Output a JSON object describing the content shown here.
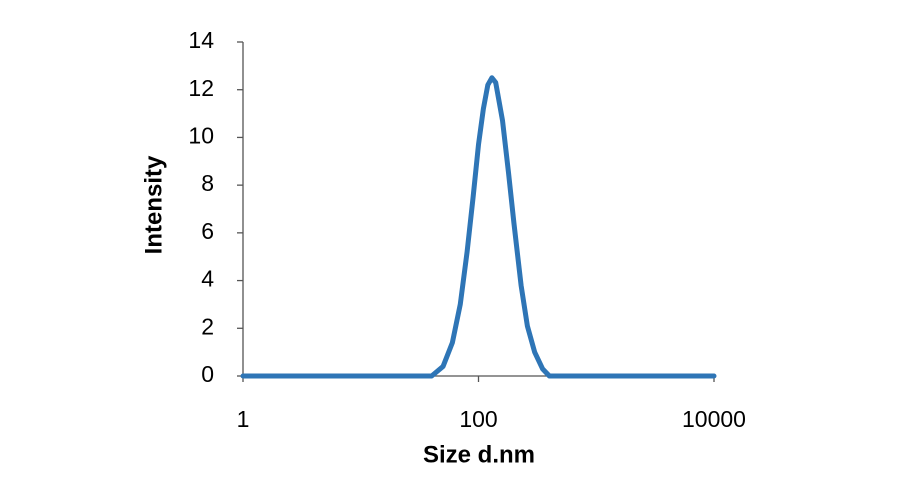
{
  "chart_data": {
    "type": "line",
    "x_label": "Size d.nm",
    "y_label": "Intensity",
    "x": [
      1,
      10,
      40,
      50,
      60,
      70,
      80,
      90,
      100,
      110,
      120,
      130,
      140,
      160,
      180,
      200,
      230,
      260,
      300,
      350,
      400,
      1000,
      10000
    ],
    "values": [
      0,
      0,
      0,
      0.4,
      1.4,
      3.0,
      5.2,
      7.5,
      9.7,
      11.2,
      12.2,
      12.5,
      12.3,
      10.7,
      8.5,
      6.4,
      3.8,
      2.1,
      1.0,
      0.3,
      0,
      0,
      0
    ],
    "color": "#2e75b6",
    "x_log": true,
    "xlim": [
      1,
      10000
    ],
    "xticks": [
      1,
      100,
      10000
    ],
    "ylim": [
      0,
      14
    ],
    "yticks": [
      0,
      2,
      4,
      6,
      8,
      10,
      12,
      14
    ]
  }
}
